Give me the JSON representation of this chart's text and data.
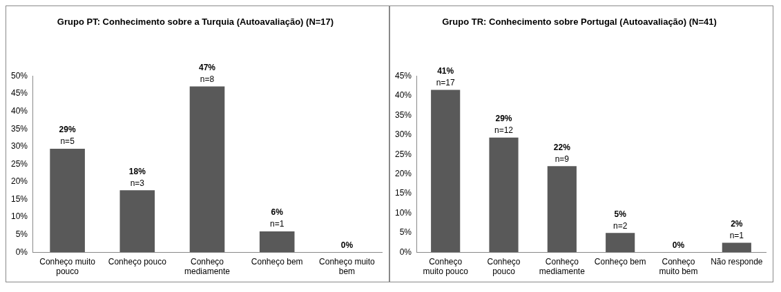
{
  "chart_data": [
    {
      "type": "bar",
      "title": "Grupo PT: Conhecimento sobre a Turquia (Autoavaliação) (N=17)",
      "categories": [
        "Conheço muito pouco",
        "Conheço pouco",
        "Conheço mediamente",
        "Conheço bem",
        "Conheço muito bem"
      ],
      "values": [
        29.4,
        17.6,
        47.1,
        5.9,
        0
      ],
      "value_labels": [
        "29%\nn=5",
        "18%\nn=3",
        "47%\nn=8",
        "6%\nn=1",
        "0%"
      ],
      "color": "#595959",
      "ylim": [
        0,
        50
      ],
      "yticks": [
        {
          "value": 0,
          "label": "0%"
        },
        {
          "value": 5,
          "label": "5%"
        },
        {
          "value": 10,
          "label": "10%"
        },
        {
          "value": 15,
          "label": "15%"
        },
        {
          "value": 20,
          "label": "20%"
        },
        {
          "value": 25,
          "label": "25%"
        },
        {
          "value": 30,
          "label": "30%"
        },
        {
          "value": 35,
          "label": "35%"
        },
        {
          "value": 40,
          "label": "40%"
        },
        {
          "value": 45,
          "label": "45%"
        },
        {
          "value": 50,
          "label": "50%"
        }
      ],
      "grid": false,
      "legend": false
    },
    {
      "type": "bar",
      "title": "Grupo TR: Conhecimento sobre Portugal (Autoavaliação) (N=41)",
      "categories": [
        "Conheço muito pouco",
        "Conheço pouco",
        "Conheço mediamente",
        "Conheço bem",
        "Conheço muito bem",
        "Não responde"
      ],
      "values": [
        41.5,
        29.3,
        22.0,
        4.9,
        0,
        2.4
      ],
      "value_labels": [
        "41%\nn=17",
        "29%\nn=12",
        "22%\nn=9",
        "5%\nn=2",
        "0%",
        "2%\nn=1"
      ],
      "color": "#595959",
      "ylim": [
        0,
        45
      ],
      "yticks": [
        {
          "value": 0,
          "label": "0%"
        },
        {
          "value": 5,
          "label": "5%"
        },
        {
          "value": 10,
          "label": "10%"
        },
        {
          "value": 15,
          "label": "15%"
        },
        {
          "value": 20,
          "label": "20%"
        },
        {
          "value": 25,
          "label": "25%"
        },
        {
          "value": 30,
          "label": "30%"
        },
        {
          "value": 35,
          "label": "35%"
        },
        {
          "value": 40,
          "label": "40%"
        },
        {
          "value": 45,
          "label": "45%"
        }
      ],
      "grid": false,
      "legend": false
    }
  ]
}
